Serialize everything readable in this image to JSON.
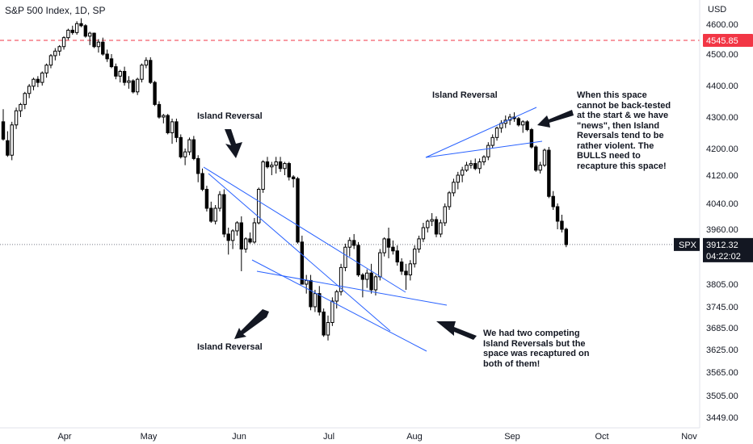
{
  "header": {
    "title": "S&P 500 Index, 1D, SP"
  },
  "axis": {
    "currency": "USD",
    "y_ticks": [
      "4600.00",
      "4500.00",
      "4400.00",
      "4300.00",
      "4200.00",
      "4120.00",
      "4040.00",
      "3960.00",
      "3805.00",
      "3745.00",
      "3685.00",
      "3625.00",
      "3565.00",
      "3505.00",
      "3449.00"
    ],
    "x_ticks": [
      "Apr",
      "May",
      "Jun",
      "Jul",
      "Aug",
      "Sep",
      "Oct",
      "Nov"
    ],
    "red_level": "4545.85",
    "symbol": "SPX",
    "price": "3912.32",
    "countdown": "04:22:02"
  },
  "annotations": {
    "ir_top": "Island Reversal",
    "ir_mid": "Island Reversal",
    "ir_bottom": "Island Reversal",
    "note_top": "When this space\ncannot be back-tested\nat the start & we have\n\"news\", then Island\nReversals tend to be\nrather violent.  The\nBULLS need to\nrecapture this space!",
    "note_bottom": "We had two competing\nIsland Reversals but the\nspace was recaptured on\nboth of them!"
  },
  "colors": {
    "candle": "#000000",
    "trendline": "#2962ff",
    "red_level": "#f23645",
    "price_tag": "#131722"
  },
  "chart_data": {
    "type": "candlestick",
    "title": "S&P 500 Index, 1D, SP",
    "ylabel": "USD",
    "x_months": [
      "Apr",
      "May",
      "Jun",
      "Jul",
      "Aug",
      "Sep",
      "Oct",
      "Nov"
    ],
    "reference_level": 4545.85,
    "last_price": 3912.32,
    "series": [
      {
        "values": [
          [
            4285,
            4325,
            4225,
            4230
          ],
          [
            4225,
            4255,
            4175,
            4180
          ],
          [
            4180,
            4285,
            4165,
            4275
          ],
          [
            4275,
            4330,
            4262,
            4320
          ],
          [
            4320,
            4345,
            4300,
            4340
          ],
          [
            4340,
            4380,
            4325,
            4375
          ],
          [
            4375,
            4405,
            4360,
            4398
          ],
          [
            4398,
            4425,
            4385,
            4420
          ],
          [
            4420,
            4430,
            4395,
            4410
          ],
          [
            4410,
            4445,
            4400,
            4440
          ],
          [
            4440,
            4470,
            4425,
            4465
          ],
          [
            4465,
            4500,
            4455,
            4495
          ],
          [
            4495,
            4520,
            4480,
            4510
          ],
          [
            4510,
            4530,
            4495,
            4525
          ],
          [
            4525,
            4560,
            4515,
            4555
          ],
          [
            4555,
            4585,
            4548,
            4580
          ],
          [
            4580,
            4595,
            4565,
            4572
          ],
          [
            4572,
            4610,
            4565,
            4602
          ],
          [
            4602,
            4620,
            4590,
            4595
          ],
          [
            4595,
            4600,
            4555,
            4560
          ],
          [
            4560,
            4575,
            4530,
            4570
          ],
          [
            4570,
            4572,
            4520,
            4525
          ],
          [
            4525,
            4550,
            4505,
            4540
          ],
          [
            4540,
            4555,
            4495,
            4500
          ],
          [
            4500,
            4515,
            4475,
            4485
          ],
          [
            4485,
            4500,
            4455,
            4460
          ],
          [
            4460,
            4470,
            4420,
            4430
          ],
          [
            4430,
            4450,
            4410,
            4445
          ],
          [
            4445,
            4460,
            4400,
            4410
          ],
          [
            4410,
            4430,
            4390,
            4415
          ],
          [
            4415,
            4420,
            4375,
            4380
          ],
          [
            4380,
            4425,
            4370,
            4420
          ],
          [
            4420,
            4470,
            4410,
            4465
          ],
          [
            4465,
            4490,
            4455,
            4480
          ],
          [
            4480,
            4490,
            4405,
            4410
          ],
          [
            4410,
            4415,
            4335,
            4340
          ],
          [
            4340,
            4350,
            4295,
            4300
          ],
          [
            4300,
            4310,
            4280,
            4305
          ],
          [
            4305,
            4310,
            4245,
            4250
          ],
          [
            4250,
            4295,
            4215,
            4285
          ],
          [
            4285,
            4295,
            4220,
            4235
          ],
          [
            4235,
            4245,
            4170,
            4175
          ],
          [
            4175,
            4200,
            4150,
            4190
          ],
          [
            4190,
            4235,
            4180,
            4228
          ],
          [
            4228,
            4240,
            4165,
            4170
          ],
          [
            4170,
            4180,
            4100,
            4125
          ],
          [
            4125,
            4140,
            4075,
            4080
          ],
          [
            4080,
            4090,
            4015,
            4025
          ],
          [
            4025,
            4045,
            3980,
            3985
          ],
          [
            3985,
            4035,
            3975,
            4025
          ],
          [
            4025,
            4075,
            4015,
            4065
          ],
          [
            4065,
            4080,
            3935,
            3945
          ],
          [
            3945,
            3965,
            3885,
            3925
          ],
          [
            3925,
            3960,
            3900,
            3955
          ],
          [
            3955,
            3985,
            3940,
            3980
          ],
          [
            3980,
            4000,
            3840,
            3900
          ],
          [
            3900,
            3935,
            3890,
            3930
          ],
          [
            3930,
            3950,
            3915,
            3920
          ],
          [
            3920,
            3995,
            3915,
            3980
          ],
          [
            3980,
            4085,
            3975,
            4080
          ],
          [
            4080,
            4165,
            4070,
            4160
          ],
          [
            4160,
            4175,
            4140,
            4145
          ],
          [
            4145,
            4160,
            4120,
            4150
          ],
          [
            4150,
            4175,
            4125,
            4160
          ],
          [
            4160,
            4175,
            4130,
            4140
          ],
          [
            4140,
            4160,
            4120,
            4155
          ],
          [
            4155,
            4160,
            4105,
            4115
          ],
          [
            4115,
            4120,
            4085,
            4110
          ],
          [
            4110,
            4115,
            3915,
            3920
          ],
          [
            3920,
            3940,
            3805,
            3805
          ],
          [
            3805,
            3830,
            3780,
            3815
          ],
          [
            3815,
            3830,
            3735,
            3745
          ],
          [
            3745,
            3790,
            3730,
            3780
          ],
          [
            3780,
            3800,
            3720,
            3730
          ],
          [
            3730,
            3740,
            3660,
            3665
          ],
          [
            3665,
            3720,
            3650,
            3700
          ],
          [
            3700,
            3770,
            3690,
            3760
          ],
          [
            3760,
            3790,
            3740,
            3785
          ],
          [
            3785,
            3860,
            3775,
            3850
          ],
          [
            3850,
            3915,
            3840,
            3905
          ],
          [
            3905,
            3935,
            3880,
            3925
          ],
          [
            3925,
            3945,
            3900,
            3910
          ],
          [
            3910,
            3920,
            3825,
            3830
          ],
          [
            3830,
            3835,
            3770,
            3818
          ],
          [
            3818,
            3845,
            3795,
            3835
          ],
          [
            3835,
            3860,
            3780,
            3790
          ],
          [
            3790,
            3830,
            3775,
            3825
          ],
          [
            3825,
            3900,
            3815,
            3890
          ],
          [
            3890,
            3935,
            3880,
            3930
          ],
          [
            3930,
            3965,
            3875,
            3905
          ],
          [
            3905,
            3925,
            3885,
            3895
          ],
          [
            3895,
            3910,
            3855,
            3865
          ],
          [
            3865,
            3875,
            3830,
            3840
          ],
          [
            3840,
            3860,
            3790,
            3830
          ],
          [
            3830,
            3870,
            3815,
            3860
          ],
          [
            3860,
            3910,
            3850,
            3900
          ],
          [
            3900,
            3940,
            3890,
            3930
          ],
          [
            3930,
            3980,
            3920,
            3965
          ],
          [
            3965,
            3990,
            3950,
            3985
          ],
          [
            3985,
            4010,
            3970,
            3990
          ],
          [
            3990,
            4000,
            3935,
            3945
          ],
          [
            3945,
            3990,
            3935,
            3980
          ],
          [
            3980,
            4040,
            3970,
            4030
          ],
          [
            4030,
            4075,
            4020,
            4070
          ],
          [
            4070,
            4110,
            4060,
            4100
          ],
          [
            4100,
            4130,
            4080,
            4120
          ],
          [
            4120,
            4145,
            4100,
            4135
          ],
          [
            4135,
            4160,
            4130,
            4150
          ],
          [
            4150,
            4165,
            4140,
            4155
          ],
          [
            4155,
            4170,
            4135,
            4140
          ],
          [
            4140,
            4170,
            4125,
            4160
          ],
          [
            4160,
            4180,
            4150,
            4175
          ],
          [
            4175,
            4220,
            4165,
            4210
          ],
          [
            4210,
            4245,
            4200,
            4235
          ],
          [
            4235,
            4270,
            4225,
            4265
          ],
          [
            4265,
            4290,
            4250,
            4280
          ],
          [
            4280,
            4305,
            4265,
            4290
          ],
          [
            4290,
            4310,
            4275,
            4300
          ],
          [
            4300,
            4315,
            4285,
            4295
          ],
          [
            4295,
            4300,
            4270,
            4275
          ],
          [
            4275,
            4290,
            4250,
            4285
          ],
          [
            4285,
            4290,
            4255,
            4260
          ],
          [
            4260,
            4265,
            4200,
            4205
          ],
          [
            4205,
            4210,
            4130,
            4135
          ],
          [
            4135,
            4160,
            4125,
            4150
          ],
          [
            4150,
            4200,
            4145,
            4195
          ],
          [
            4195,
            4205,
            4055,
            4060
          ],
          [
            4060,
            4075,
            4020,
            4030
          ],
          [
            4030,
            4040,
            3960,
            3985
          ],
          [
            3985,
            4005,
            3950,
            3960
          ],
          [
            3960,
            3965,
            3905,
            3912
          ]
        ]
      }
    ],
    "trendlines": [
      {
        "from": [
          "May 21",
          4110
        ],
        "to": [
          "Jul 14",
          3790
        ]
      },
      {
        "from": [
          "May 23",
          4085
        ],
        "to": [
          "Jul 27",
          3655
        ]
      },
      {
        "from": [
          "Jun 10",
          3830
        ],
        "to": [
          "Jul 30",
          3630
        ]
      },
      {
        "from": [
          "Jun 9",
          3810
        ],
        "to": [
          "Jul 29",
          3740
        ]
      },
      {
        "from": [
          "Aug 10",
          4175
        ],
        "to": [
          "Aug 30",
          4325
        ]
      },
      {
        "from": [
          "Aug 10",
          4170
        ],
        "to": [
          "Aug 30",
          4225
        ]
      }
    ]
  }
}
